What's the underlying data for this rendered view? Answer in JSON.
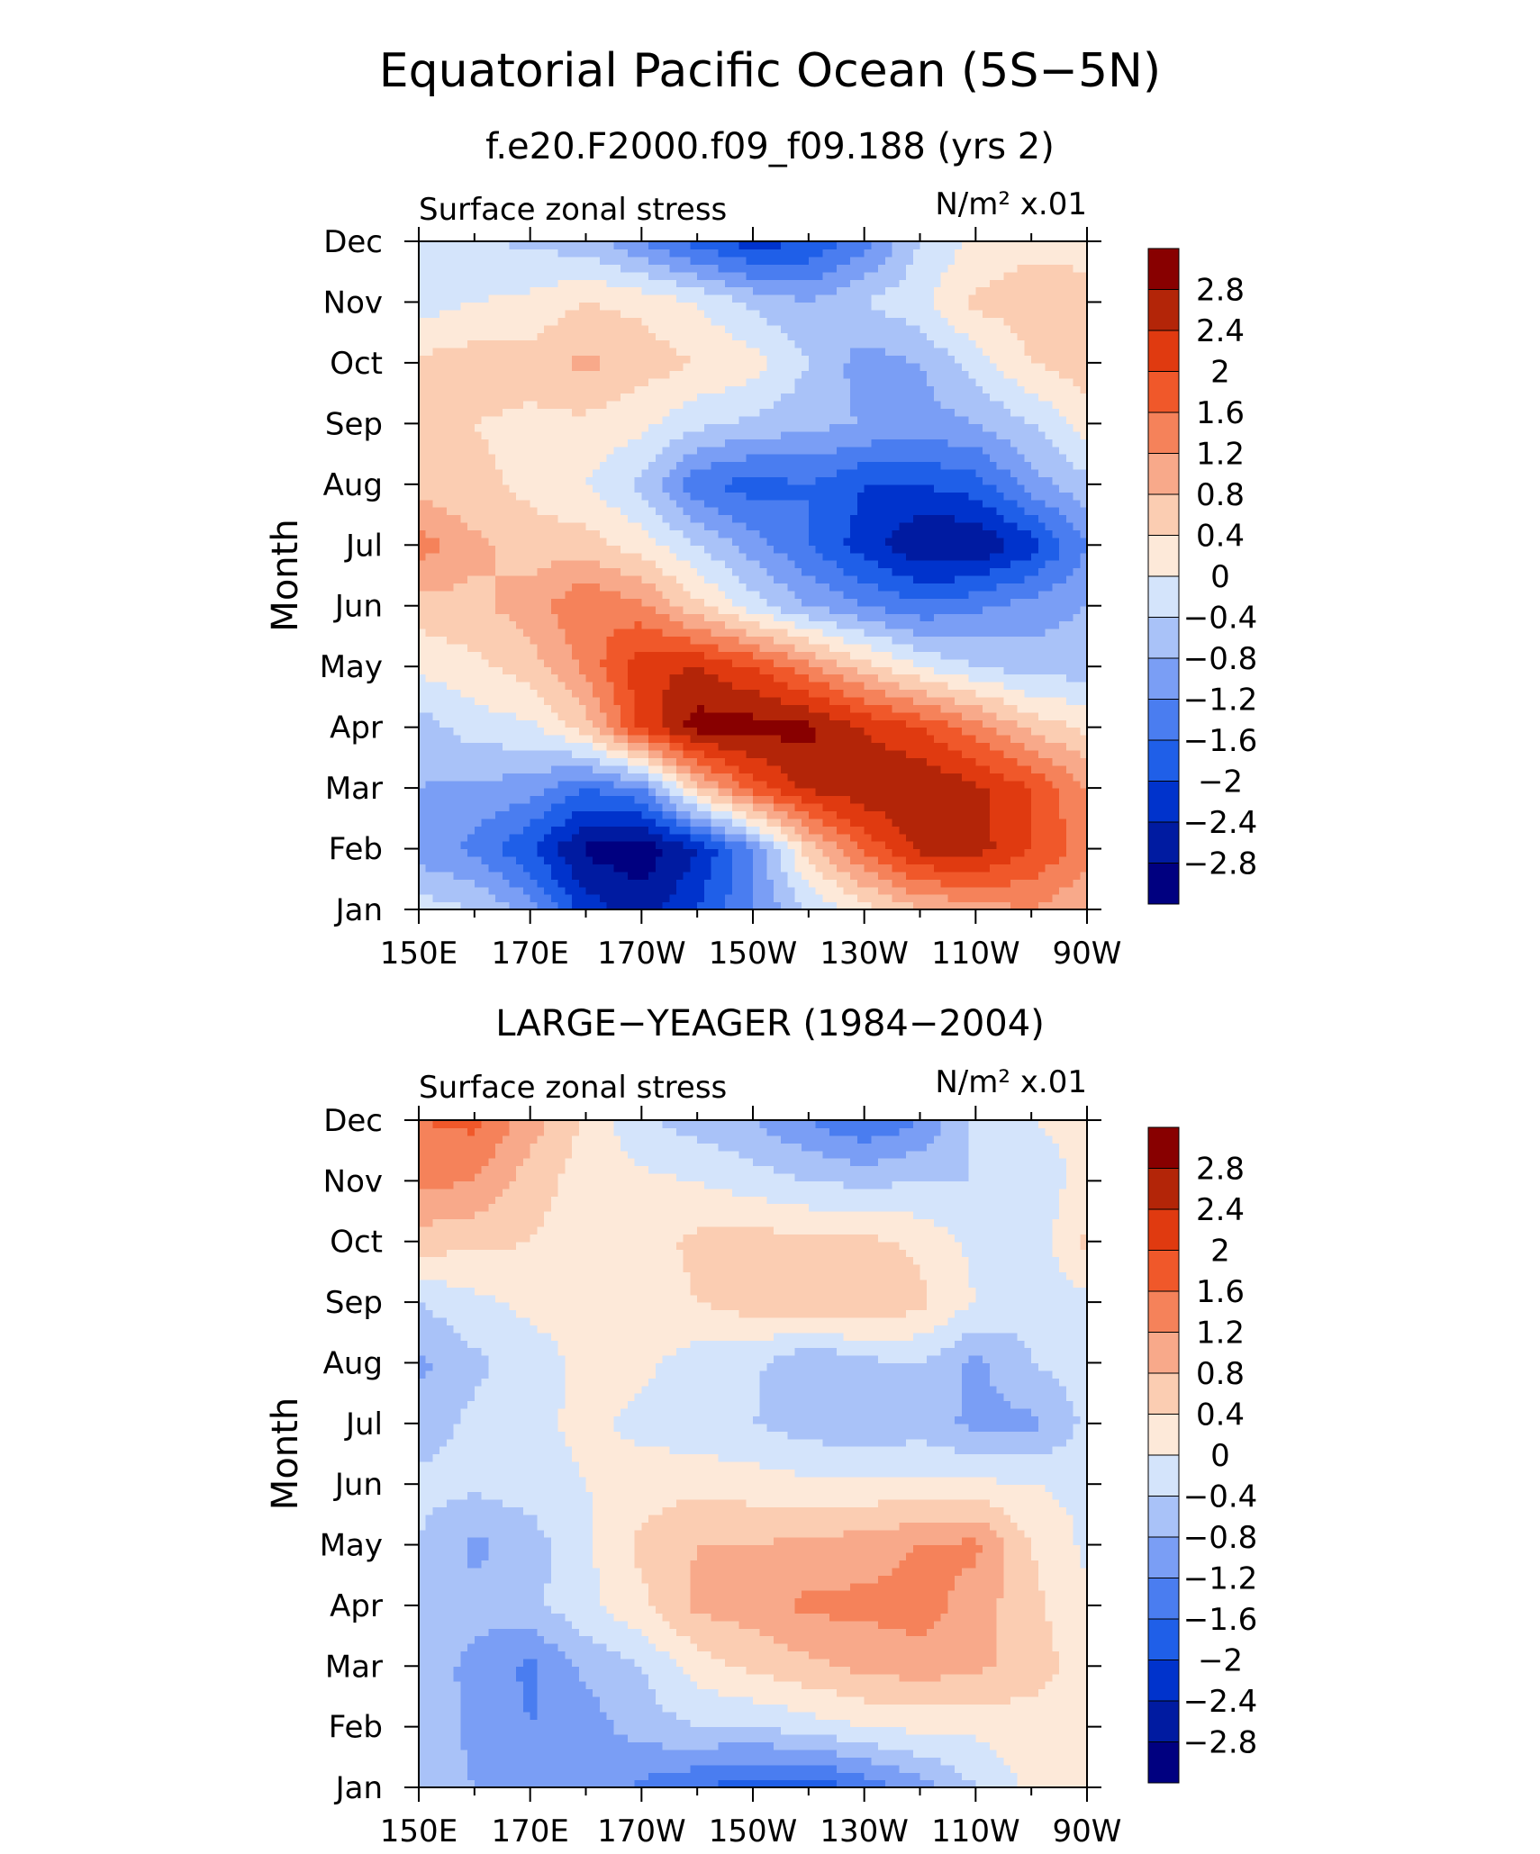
{
  "figure": {
    "title": "Equatorial Pacific Ocean (5S−5N)"
  },
  "chart_data": [
    {
      "type": "heatmap",
      "title": "f.e20.F2000.f09_f09.188 (yrs 2)",
      "left_label": "Surface zonal stress",
      "units_label": "N/m² x.01",
      "xlabel": "",
      "ylabel": "Month",
      "x_ticks": [
        "150E",
        "170E",
        "170W",
        "150W",
        "130W",
        "110W",
        "90W"
      ],
      "y_ticks": [
        "Jan",
        "Feb",
        "Mar",
        "Apr",
        "May",
        "Jun",
        "Jul",
        "Aug",
        "Sep",
        "Oct",
        "Nov",
        "Dec"
      ],
      "x_columns": [
        "150E",
        "160E",
        "170E",
        "180",
        "170W",
        "160W",
        "150W",
        "140W",
        "130W",
        "120W",
        "110W",
        "100W",
        "90W"
      ],
      "values": [
        [
          -0.2,
          -0.4,
          -1.0,
          -2.2,
          -2.6,
          -2.0,
          -1.2,
          -0.4,
          0.2,
          0.8,
          1.0,
          1.2,
          0.8
        ],
        [
          -1.0,
          -1.3,
          -2.0,
          -2.9,
          -3.1,
          -2.4,
          -1.2,
          0.6,
          1.7,
          2.5,
          2.6,
          2.0,
          1.4
        ],
        [
          -0.8,
          -0.9,
          -1.0,
          -1.6,
          -1.2,
          0.6,
          1.8,
          2.5,
          2.7,
          2.8,
          2.5,
          2.0,
          1.2
        ],
        [
          -0.6,
          -0.2,
          -0.1,
          0.6,
          2.1,
          3.0,
          3.0,
          2.9,
          2.4,
          2.0,
          1.4,
          0.7,
          0.3
        ],
        [
          0.1,
          0.3,
          0.6,
          1.3,
          2.3,
          2.4,
          2.0,
          1.3,
          0.6,
          0.0,
          -0.4,
          -0.6,
          -0.6
        ],
        [
          0.6,
          0.7,
          1.0,
          1.6,
          1.3,
          0.5,
          -0.2,
          -0.8,
          -1.2,
          -1.5,
          -1.3,
          -1.0,
          -0.8
        ],
        [
          1.4,
          0.9,
          0.6,
          0.6,
          0.2,
          -0.4,
          -1.0,
          -1.6,
          -2.2,
          -2.8,
          -2.8,
          -2.2,
          -1.2
        ],
        [
          0.6,
          0.5,
          0.3,
          0.0,
          -0.5,
          -1.5,
          -1.8,
          -1.6,
          -2.0,
          -2.0,
          -1.8,
          -1.0,
          -0.5
        ],
        [
          0.6,
          0.4,
          0.3,
          0.3,
          0.1,
          -0.3,
          -0.5,
          -0.7,
          -0.8,
          -1.0,
          -0.8,
          -0.4,
          0.2
        ],
        [
          0.5,
          0.6,
          0.6,
          0.9,
          0.6,
          0.4,
          0.2,
          -0.4,
          -1.0,
          -0.8,
          -0.2,
          0.4,
          0.6
        ],
        [
          -0.2,
          0.0,
          0.1,
          0.4,
          0.3,
          0.0,
          -0.5,
          -0.8,
          -0.4,
          -0.1,
          0.5,
          0.6,
          0.5
        ],
        [
          -0.4,
          -0.3,
          -0.5,
          -0.6,
          -1.2,
          -1.8,
          -2.2,
          -2.0,
          -1.4,
          -0.4,
          0.1,
          0.3,
          0.3
        ]
      ],
      "contour_levels": [
        -2.8,
        -2.4,
        -2,
        -1.6,
        -1.2,
        -0.8,
        -0.4,
        0,
        0.4,
        0.8,
        1.2,
        1.6,
        2,
        2.4,
        2.8
      ],
      "colorbar_labels": [
        "2.8",
        "2.4",
        "2",
        "1.6",
        "1.2",
        "0.8",
        "0.4",
        "0",
        "−0.4",
        "−0.8",
        "−1.2",
        "−1.6",
        "−2",
        "−2.4",
        "−2.8"
      ],
      "colors": [
        "#000080",
        "#001ba1",
        "#0033cc",
        "#1f5fe8",
        "#4a7df0",
        "#7a9ef5",
        "#a9c2f8",
        "#d4e4fb",
        "#fde9d9",
        "#fbcdb2",
        "#f8a98a",
        "#f5825a",
        "#f0582a",
        "#e03a10",
        "#b32508",
        "#880000"
      ]
    },
    {
      "type": "heatmap",
      "title": "LARGE−YEAGER (1984−2004)",
      "left_label": "Surface zonal stress",
      "units_label": "N/m² x.01",
      "xlabel": "",
      "ylabel": "Month",
      "x_ticks": [
        "150E",
        "170E",
        "170W",
        "150W",
        "130W",
        "110W",
        "90W"
      ],
      "y_ticks": [
        "Jan",
        "Feb",
        "Mar",
        "Apr",
        "May",
        "Jun",
        "Jul",
        "Aug",
        "Sep",
        "Oct",
        "Nov",
        "Dec"
      ],
      "x_columns": [
        "150E",
        "160E",
        "170E",
        "180",
        "170W",
        "160W",
        "150W",
        "140W",
        "130W",
        "120W",
        "110W",
        "100W",
        "90W"
      ],
      "values": [
        [
          -0.6,
          -0.8,
          -1.0,
          -0.9,
          -1.3,
          -1.6,
          -1.8,
          -1.9,
          -1.5,
          -1.0,
          -0.4,
          0.1,
          0.3
        ],
        [
          -0.5,
          -0.9,
          -1.2,
          -1.0,
          -0.6,
          -0.4,
          -0.4,
          -0.2,
          0.0,
          0.1,
          0.1,
          0.2,
          0.1
        ],
        [
          -0.6,
          -0.9,
          -1.3,
          -0.7,
          -0.4,
          0.2,
          0.5,
          0.7,
          0.9,
          1.0,
          0.9,
          0.6,
          0.2
        ],
        [
          -0.5,
          -0.7,
          -0.5,
          -0.1,
          0.3,
          0.9,
          1.0,
          1.3,
          1.3,
          1.4,
          1.0,
          0.5,
          0.1
        ],
        [
          -0.4,
          -0.9,
          -0.6,
          -0.1,
          0.5,
          0.8,
          0.8,
          0.9,
          1.0,
          1.2,
          1.3,
          0.4,
          -0.1
        ],
        [
          -0.3,
          -0.3,
          -0.2,
          0.0,
          0.2,
          0.3,
          0.2,
          0.1,
          0.1,
          0.1,
          0.1,
          0.0,
          -0.1
        ],
        [
          -0.6,
          -0.3,
          -0.1,
          0.1,
          -0.1,
          -0.3,
          -0.4,
          -0.6,
          -0.7,
          -0.6,
          -0.9,
          -0.9,
          -0.3
        ],
        [
          -0.9,
          -0.5,
          -0.2,
          0.1,
          0.1,
          -0.2,
          -0.3,
          -0.8,
          -0.5,
          -0.4,
          -0.9,
          -0.4,
          -0.2
        ],
        [
          -0.4,
          -0.1,
          0.1,
          0.2,
          0.2,
          0.4,
          0.6,
          0.7,
          0.8,
          0.5,
          0.0,
          -0.3,
          -0.1
        ],
        [
          0.6,
          0.5,
          0.4,
          0.2,
          0.2,
          0.5,
          0.6,
          0.5,
          0.5,
          0.3,
          -0.1,
          -0.3,
          0.5
        ],
        [
          1.3,
          1.2,
          0.6,
          0.2,
          0.1,
          0.0,
          -0.2,
          -0.4,
          -0.5,
          -0.4,
          -0.4,
          -0.2,
          0.1
        ],
        [
          1.6,
          1.7,
          1.0,
          0.3,
          -0.3,
          -0.6,
          -0.8,
          -1.2,
          -1.6,
          -1.2,
          -0.3,
          0.0,
          0.1
        ]
      ],
      "contour_levels": [
        -2.8,
        -2.4,
        -2,
        -1.6,
        -1.2,
        -0.8,
        -0.4,
        0,
        0.4,
        0.8,
        1.2,
        1.6,
        2,
        2.4,
        2.8
      ],
      "colorbar_labels": [
        "2.8",
        "2.4",
        "2",
        "1.6",
        "1.2",
        "0.8",
        "0.4",
        "0",
        "−0.4",
        "−0.8",
        "−1.2",
        "−1.6",
        "−2",
        "−2.4",
        "−2.8"
      ],
      "colors": [
        "#000080",
        "#001ba1",
        "#0033cc",
        "#1f5fe8",
        "#4a7df0",
        "#7a9ef5",
        "#a9c2f8",
        "#d4e4fb",
        "#fde9d9",
        "#fbcdb2",
        "#f8a98a",
        "#f5825a",
        "#f0582a",
        "#e03a10",
        "#b32508",
        "#880000"
      ]
    }
  ]
}
